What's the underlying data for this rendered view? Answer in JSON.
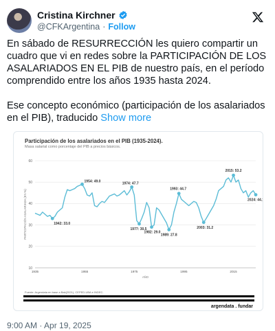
{
  "author": {
    "name": "Cristina Kirchner",
    "handle": "@CFKArgentina",
    "separator": "·",
    "follow_label": "Follow"
  },
  "tweet": {
    "paragraph1": "En sábado de RESURRECCIÓN les quiero compartir un cuadro que vi en redes sobre la PARTICIPACIÓN DE LOS ASALARIADOS EN EL PIB de nuestro país, en el período comprendido entre los años 1935 hasta 2024.",
    "paragraph2": "Ese concepto económico (participación de los asalariados en el PIB), traducido",
    "show_more": "Show more",
    "timestamp": "9:00 AM · Apr 19, 2025"
  },
  "card": {
    "source": "Fuente: Argendata en base a Bak(2021), CEPED-UBA e INDEC.",
    "brand": "argendata . fundar"
  },
  "icons": {
    "verified": "verified-badge-icon",
    "x_logo": "x-logo-icon"
  },
  "colors": {
    "accent": "#1d9bf0",
    "series": "#5bbcd6",
    "text": "#0f1419",
    "muted": "#536471"
  },
  "chart_data": {
    "type": "line",
    "title": "Participación de los asalariados en el PIB (1935-2024).",
    "subtitle": "Masa salarial como porcentaje del PIB a precios básicos.",
    "xlabel": "AÑO",
    "ylabel": "PARTICIPACIÓN ASALARIADA (EN %)",
    "xlim": [
      1935,
      2024
    ],
    "ylim": [
      10,
      60
    ],
    "y_ticks": [
      10,
      20,
      30,
      40,
      50,
      60
    ],
    "x_ticks": [
      1935,
      1955,
      1975,
      1995,
      2015
    ],
    "grid": true,
    "series": [
      {
        "x": [
          1935,
          1936,
          1937,
          1938,
          1939,
          1940,
          1941,
          1942,
          1943,
          1944,
          1945,
          1946,
          1947,
          1948,
          1949,
          1950,
          1951,
          1952,
          1953,
          1954,
          1955,
          1956,
          1957,
          1958,
          1959,
          1960,
          1961,
          1962,
          1963,
          1964,
          1965,
          1966,
          1967,
          1968,
          1969,
          1970,
          1971,
          1972,
          1973,
          1974,
          1975,
          1976,
          1977,
          1978,
          1979,
          1980,
          1981,
          1982,
          1983,
          1984,
          1985,
          1986,
          1987,
          1988,
          1989,
          1990,
          1991,
          1992,
          1993,
          1994,
          1995,
          1996,
          1997,
          1998,
          1999,
          2000,
          2001,
          2002,
          2003,
          2004,
          2005,
          2006,
          2007,
          2008,
          2009,
          2010,
          2011,
          2012,
          2013,
          2014,
          2015,
          2016,
          2017,
          2018,
          2019,
          2020,
          2021,
          2022,
          2023,
          2024
        ],
        "y": [
          35.5,
          35.0,
          34.5,
          36.0,
          35.0,
          34.0,
          34.5,
          33.0,
          34.0,
          36.0,
          37.0,
          38.0,
          43.0,
          46.5,
          46.0,
          46.5,
          47.0,
          48.0,
          48.5,
          49.0,
          47.0,
          44.0,
          43.5,
          45.0,
          39.0,
          38.5,
          40.0,
          41.0,
          40.5,
          42.0,
          43.5,
          44.0,
          44.5,
          43.5,
          44.0,
          45.0,
          46.0,
          44.0,
          45.5,
          47.7,
          44.0,
          32.0,
          30.5,
          33.0,
          36.0,
          40.5,
          38.0,
          29.0,
          30.0,
          38.0,
          37.0,
          35.0,
          33.0,
          31.0,
          27.8,
          30.0,
          36.0,
          40.0,
          44.7,
          42.0,
          41.0,
          40.0,
          39.0,
          40.0,
          41.0,
          40.5,
          38.0,
          34.0,
          31.2,
          33.0,
          35.0,
          37.0,
          39.0,
          42.0,
          46.0,
          47.0,
          48.0,
          51.0,
          52.0,
          50.0,
          53.2,
          50.0,
          51.0,
          47.0,
          45.0,
          46.0,
          43.0,
          45.0,
          46.0,
          44.1
        ]
      }
    ],
    "annotations": [
      {
        "x": 1942,
        "y": 33.0,
        "label": "1942: 33.0"
      },
      {
        "x": 1954,
        "y": 49.0,
        "label": "1954: 49.0"
      },
      {
        "x": 1974,
        "y": 47.7,
        "label": "1974: 47.7"
      },
      {
        "x": 1977,
        "y": 30.5,
        "label": "1977: 30.5"
      },
      {
        "x": 1982,
        "y": 29.0,
        "label": "1982: 29.0"
      },
      {
        "x": 1989,
        "y": 27.8,
        "label": "1989: 27.8"
      },
      {
        "x": 1993,
        "y": 44.7,
        "label": "1993: 44.7"
      },
      {
        "x": 2003,
        "y": 31.2,
        "label": "2003: 31.2"
      },
      {
        "x": 2015,
        "y": 53.2,
        "label": "2015: 53.2"
      },
      {
        "x": 2024,
        "y": 44.1,
        "label": "2024: 44.1"
      }
    ]
  }
}
